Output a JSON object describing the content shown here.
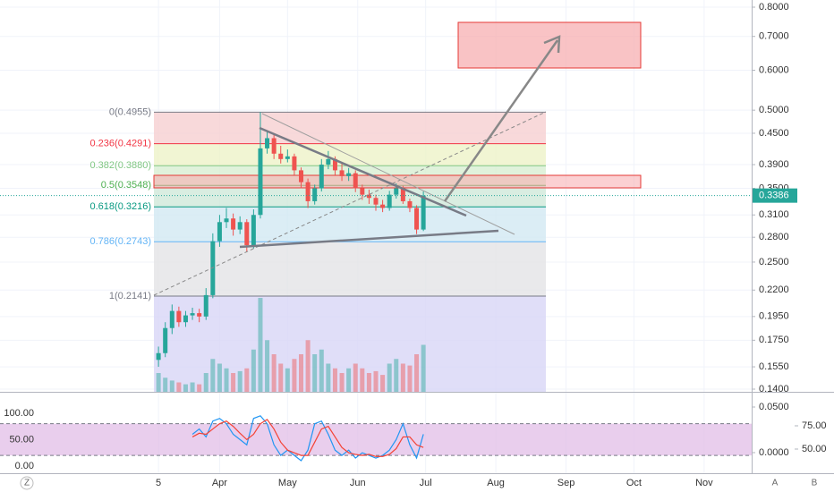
{
  "chart_data": [
    {
      "type": "candlestick",
      "log_scale": true,
      "grid": true,
      "up_color": "#26a69a",
      "down_color": "#ef5350",
      "xlim": [
        -6,
        326
      ],
      "ylim": [
        0.1383,
        0.8266
      ],
      "xticks": [
        {
          "value": 64,
          "label": "5"
        },
        {
          "value": 91,
          "label": "Apr"
        },
        {
          "value": 121,
          "label": "May"
        },
        {
          "value": 152,
          "label": "Jun"
        },
        {
          "value": 182,
          "label": "Jul"
        },
        {
          "value": 213,
          "label": "Aug"
        },
        {
          "value": 244,
          "label": "Sep"
        },
        {
          "value": 274,
          "label": "Oct"
        },
        {
          "value": 305,
          "label": "Nov"
        }
      ],
      "yticks": [
        {
          "value": 0.8,
          "label": "0.8000"
        },
        {
          "value": 0.7,
          "label": "0.7000"
        },
        {
          "value": 0.6,
          "label": "0.6000"
        },
        {
          "value": 0.5,
          "label": "0.5000"
        },
        {
          "value": 0.45,
          "label": "0.4500"
        },
        {
          "value": 0.39,
          "label": "0.3900"
        },
        {
          "value": 0.35,
          "label": "0.3500"
        },
        {
          "value": 0.31,
          "label": "0.3100"
        },
        {
          "value": 0.28,
          "label": "0.2800"
        },
        {
          "value": 0.25,
          "label": "0.2500"
        },
        {
          "value": 0.22,
          "label": "0.2200"
        },
        {
          "value": 0.195,
          "label": "0.1950"
        },
        {
          "value": 0.175,
          "label": "0.1750"
        },
        {
          "value": 0.155,
          "label": "0.1550"
        },
        {
          "value": 0.14,
          "label": "0.1400"
        }
      ],
      "last_price": 0.3386,
      "fib_levels": [
        {
          "label": "0(0.4955)",
          "value": 0.4955,
          "color": "#787b86",
          "fill": "#f6cfd1"
        },
        {
          "label": "0.236(0.4291)",
          "value": 0.4291,
          "color": "#f23645",
          "fill": "#eef3c8"
        },
        {
          "label": "0.382(0.3880)",
          "value": 0.388,
          "color": "#81c784",
          "fill": "#d8efd2"
        },
        {
          "label": "0.5(0.3548)",
          "value": 0.3548,
          "color": "#4caf50",
          "fill": "#cfe9da"
        },
        {
          "label": "0.618(0.3216)",
          "value": 0.3216,
          "color": "#089981",
          "fill": "#d2e8f2"
        },
        {
          "label": "0.786(0.2743)",
          "value": 0.2743,
          "color": "#64b5f6",
          "fill": "#e4e4e6"
        },
        {
          "label": "1(0.2141)",
          "value": 0.2141,
          "color": "#787b86",
          "fill": "#d8d6f6"
        }
      ],
      "x": [
        64,
        67,
        70,
        73,
        76,
        79,
        82,
        85,
        88,
        91,
        94,
        97,
        100,
        103,
        106,
        109,
        112,
        115,
        118,
        121,
        124,
        127,
        130,
        133,
        136,
        139,
        142,
        145,
        148,
        151,
        154,
        157,
        160,
        163,
        166,
        169,
        172,
        175,
        178,
        181
      ],
      "open": [
        0.16,
        0.165,
        0.185,
        0.2,
        0.19,
        0.196,
        0.198,
        0.195,
        0.215,
        0.275,
        0.3,
        0.305,
        0.29,
        0.3,
        0.27,
        0.31,
        0.42,
        0.44,
        0.41,
        0.4,
        0.405,
        0.38,
        0.36,
        0.33,
        0.35,
        0.39,
        0.4,
        0.38,
        0.37,
        0.375,
        0.35,
        0.34,
        0.335,
        0.325,
        0.32,
        0.34,
        0.35,
        0.33,
        0.32,
        0.29
      ],
      "high": [
        0.17,
        0.19,
        0.206,
        0.204,
        0.2,
        0.203,
        0.202,
        0.222,
        0.285,
        0.31,
        0.32,
        0.312,
        0.308,
        0.304,
        0.318,
        0.4955,
        0.455,
        0.448,
        0.425,
        0.418,
        0.41,
        0.385,
        0.366,
        0.356,
        0.4,
        0.415,
        0.405,
        0.392,
        0.384,
        0.38,
        0.356,
        0.348,
        0.34,
        0.332,
        0.346,
        0.358,
        0.354,
        0.334,
        0.324,
        0.345
      ],
      "low": [
        0.155,
        0.162,
        0.18,
        0.186,
        0.186,
        0.192,
        0.19,
        0.192,
        0.212,
        0.268,
        0.292,
        0.282,
        0.284,
        0.262,
        0.266,
        0.305,
        0.41,
        0.4,
        0.392,
        0.394,
        0.372,
        0.35,
        0.32,
        0.325,
        0.345,
        0.382,
        0.372,
        0.362,
        0.362,
        0.344,
        0.332,
        0.326,
        0.316,
        0.314,
        0.316,
        0.334,
        0.326,
        0.314,
        0.284,
        0.288
      ],
      "close": [
        0.165,
        0.185,
        0.2,
        0.19,
        0.196,
        0.198,
        0.195,
        0.215,
        0.275,
        0.3,
        0.305,
        0.29,
        0.3,
        0.27,
        0.31,
        0.42,
        0.44,
        0.41,
        0.4,
        0.405,
        0.38,
        0.36,
        0.33,
        0.35,
        0.39,
        0.4,
        0.38,
        0.37,
        0.375,
        0.35,
        0.34,
        0.335,
        0.325,
        0.32,
        0.34,
        0.35,
        0.33,
        0.32,
        0.29,
        0.3386
      ],
      "volume": [
        20,
        15,
        12,
        10,
        8,
        10,
        8,
        20,
        35,
        30,
        25,
        20,
        22,
        25,
        45,
        100,
        55,
        40,
        30,
        25,
        35,
        40,
        55,
        40,
        45,
        30,
        25,
        20,
        25,
        30,
        25,
        20,
        22,
        18,
        30,
        35,
        30,
        28,
        40,
        50
      ]
    },
    {
      "type": "line",
      "ylim": [
        -12,
        137
      ],
      "yticks": [
        {
          "value": 100,
          "label": "100.00"
        },
        {
          "value": 50,
          "label": "50.00"
        },
        {
          "value": 0,
          "label": "0.00"
        }
      ],
      "y2lim": [
        -0.0216,
        0.0647
      ],
      "y2ticks": [
        {
          "value": 0.05,
          "label": "0.0500"
        },
        {
          "value": 0,
          "label": "0.0000"
        }
      ],
      "y3lim": [
        25,
        109.6
      ],
      "y3ticks": [
        {
          "value": 75,
          "label": "75.00"
        },
        {
          "value": 50,
          "label": "50.00"
        }
      ],
      "band": [
        20,
        80
      ],
      "band_color": "#e1bee7",
      "series": [
        {
          "color": "#2196f3",
          "values": [
            null,
            null,
            null,
            null,
            null,
            60,
            70,
            55,
            85,
            90,
            80,
            60,
            50,
            40,
            90,
            95,
            80,
            40,
            20,
            30,
            20,
            10,
            30,
            80,
            85,
            60,
            30,
            20,
            30,
            15,
            25,
            20,
            15,
            20,
            30,
            50,
            80,
            40,
            15,
            60
          ]
        },
        {
          "color": "#f44336",
          "values": [
            null,
            null,
            null,
            null,
            null,
            55,
            62,
            60,
            70,
            80,
            85,
            75,
            62,
            50,
            60,
            80,
            88,
            70,
            45,
            30,
            25,
            20,
            20,
            45,
            70,
            75,
            55,
            35,
            25,
            22,
            20,
            22,
            18,
            18,
            22,
            33,
            55,
            55,
            40,
            35
          ]
        }
      ]
    }
  ],
  "toolbar": {
    "left": "Z",
    "right": [
      "A",
      "B"
    ]
  }
}
